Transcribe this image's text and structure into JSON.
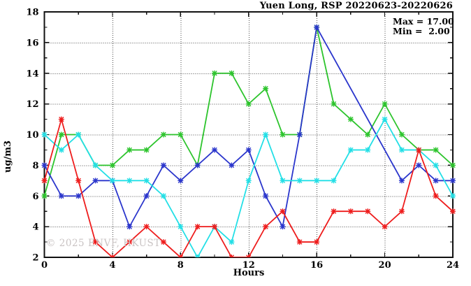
{
  "header": {
    "title": "Yuen Long, RSP 20220623-20220626"
  },
  "stats_box": {
    "max_label": "Max = 17.00",
    "min_label": "Min =  2.00"
  },
  "watermark": "© 2025 ENVF, HKUST",
  "chart_data": {
    "type": "line",
    "title": "Yuen Long, RSP 20220623-20220626",
    "xlabel": "Hours",
    "ylabel": "ug/m3",
    "xlim": [
      0,
      24
    ],
    "ylim": [
      2,
      18
    ],
    "xticks_labeled": [
      0,
      4,
      8,
      12,
      16,
      20,
      24
    ],
    "xtick_minor_step": 2,
    "yticks_labeled": [
      2,
      4,
      6,
      8,
      10,
      12,
      14,
      16,
      18
    ],
    "ytick_minor_step": 1,
    "grid": "dotted",
    "legend_position": "none",
    "max": 17.0,
    "min": 2.0,
    "x": [
      0,
      1,
      2,
      3,
      4,
      5,
      6,
      7,
      8,
      9,
      10,
      11,
      12,
      13,
      14,
      15,
      16,
      17,
      18,
      19,
      20,
      21,
      22,
      23,
      24
    ],
    "series": [
      {
        "name": "green",
        "color": "#2cc42c",
        "values": [
          6,
          10,
          10,
          8,
          8,
          9,
          9,
          10,
          10,
          8,
          14,
          14,
          12,
          13,
          10,
          10,
          17,
          12,
          11,
          10,
          12,
          10,
          9,
          9,
          8
        ]
      },
      {
        "name": "blue",
        "color": "#2a35cc",
        "values": [
          8,
          6,
          6,
          7,
          7,
          4,
          6,
          8,
          7,
          8,
          9,
          8,
          9,
          6,
          4,
          10,
          17,
          null,
          null,
          null,
          null,
          7,
          8,
          7,
          7
        ]
      },
      {
        "name": "cyan",
        "color": "#22dfe6",
        "values": [
          10,
          9,
          10,
          8,
          7,
          7,
          7,
          6,
          4,
          2,
          4,
          3,
          7,
          10,
          7,
          7,
          7,
          7,
          9,
          9,
          11,
          9,
          9,
          8,
          6
        ]
      },
      {
        "name": "red",
        "color": "#ee1c1c",
        "values": [
          7,
          11,
          7,
          3,
          2,
          3,
          4,
          3,
          2,
          4,
          4,
          2,
          2,
          4,
          5,
          3,
          3,
          5,
          5,
          5,
          4,
          5,
          9,
          6,
          5
        ]
      }
    ]
  }
}
